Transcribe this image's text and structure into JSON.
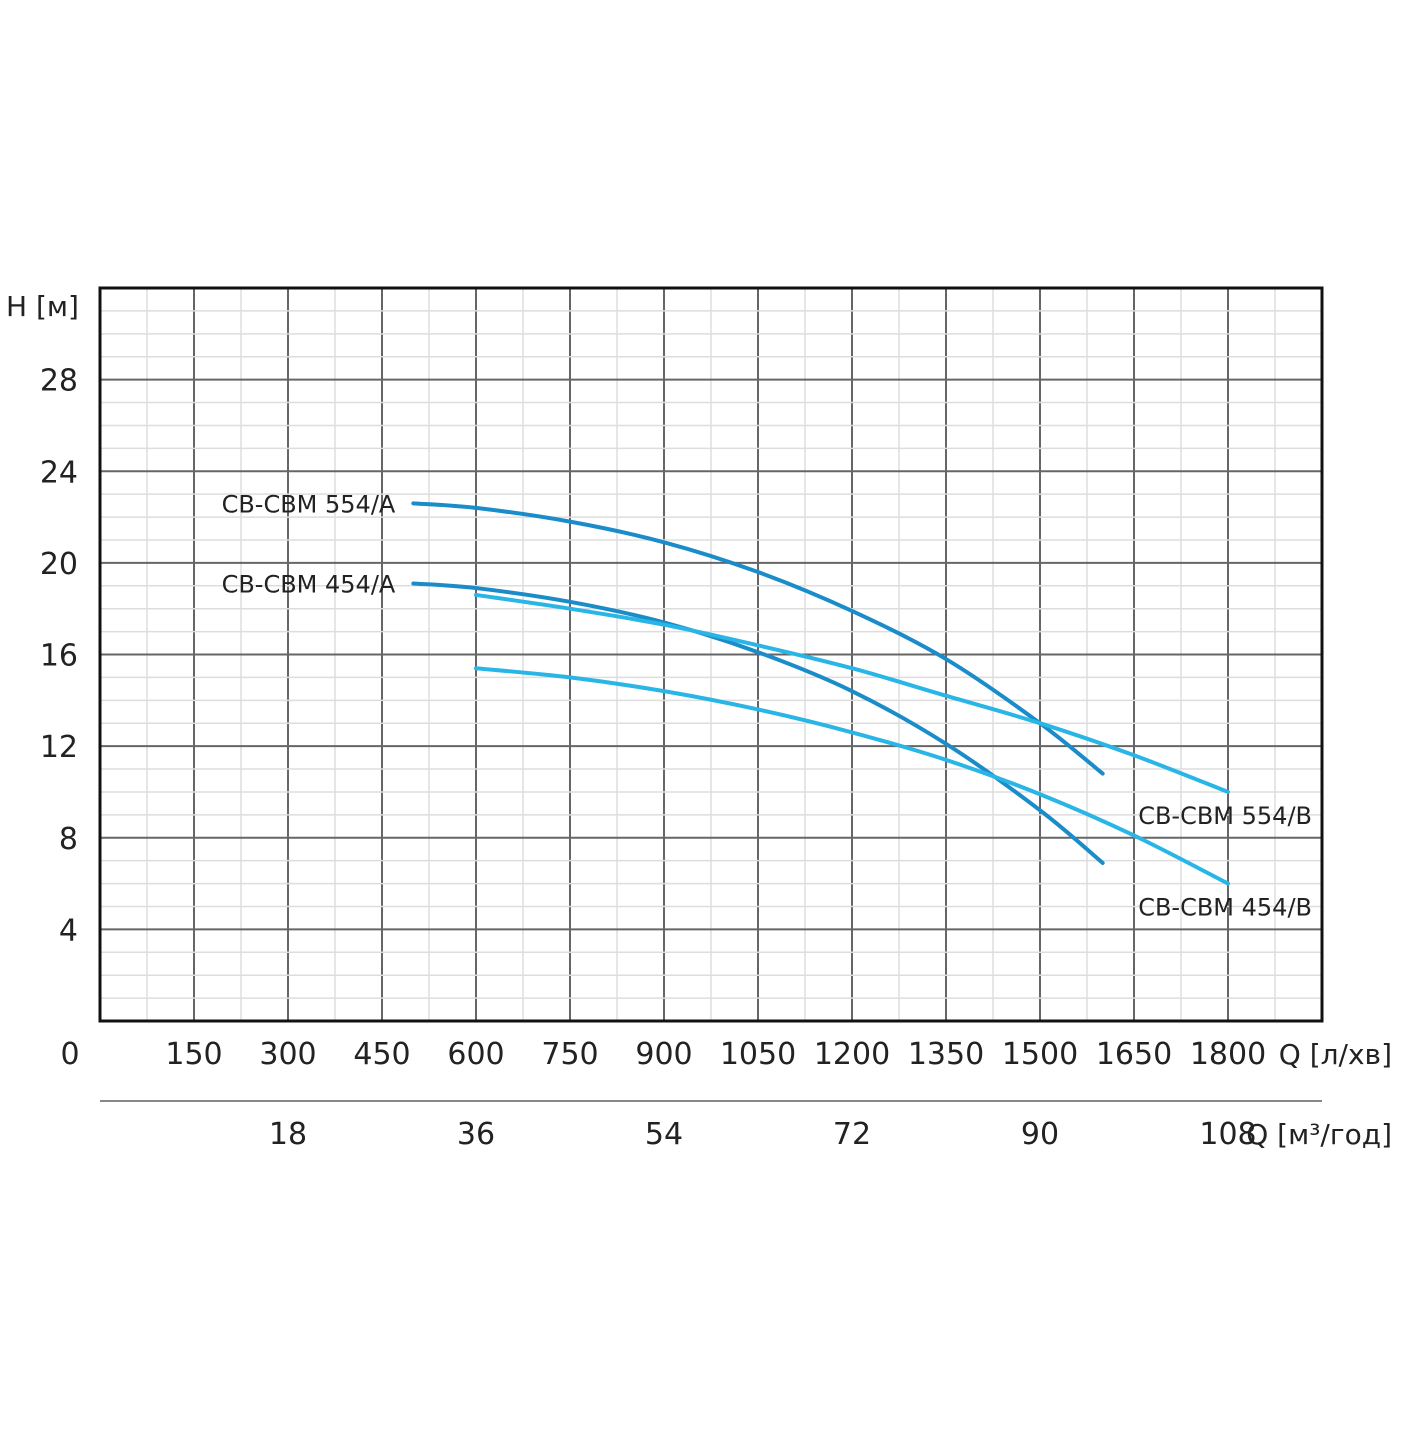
{
  "chart_data": {
    "type": "line",
    "title": "",
    "ylabel": "H [м]",
    "xlabel": "Q [л/хв]",
    "x2label": "Q [м³/год]",
    "ylim": [
      0,
      32
    ],
    "xlim": [
      0,
      1950
    ],
    "x2lim": [
      0,
      117
    ],
    "yticks": [
      "4",
      "8",
      "12",
      "16",
      "20",
      "24",
      "28"
    ],
    "y_zero_label": "0",
    "xticks": [
      "150",
      "300",
      "450",
      "600",
      "750",
      "900",
      "1050",
      "1200",
      "1350",
      "1500",
      "1650",
      "1800"
    ],
    "x2ticks": [
      "18",
      "36",
      "54",
      "72",
      "90",
      "108"
    ],
    "grid": true,
    "series": [
      {
        "name": "CB-CBM 554/A",
        "color": "#1a8cc9",
        "points": [
          [
            500,
            22.6
          ],
          [
            600,
            22.4
          ],
          [
            750,
            21.8
          ],
          [
            900,
            20.9
          ],
          [
            1050,
            19.6
          ],
          [
            1200,
            17.9
          ],
          [
            1350,
            15.8
          ],
          [
            1500,
            13.0
          ],
          [
            1600,
            10.8
          ]
        ]
      },
      {
        "name": "CB-CBM 454/A",
        "color": "#1a8cc9",
        "points": [
          [
            500,
            19.1
          ],
          [
            600,
            18.9
          ],
          [
            750,
            18.3
          ],
          [
            900,
            17.4
          ],
          [
            1050,
            16.1
          ],
          [
            1200,
            14.4
          ],
          [
            1350,
            12.1
          ],
          [
            1500,
            9.2
          ],
          [
            1600,
            6.9
          ]
        ]
      },
      {
        "name": "CB-CBM 554/B",
        "color": "#29b6e6",
        "points": [
          [
            600,
            18.6
          ],
          [
            750,
            18.0
          ],
          [
            900,
            17.3
          ],
          [
            1050,
            16.4
          ],
          [
            1200,
            15.4
          ],
          [
            1350,
            14.2
          ],
          [
            1500,
            13.0
          ],
          [
            1650,
            11.6
          ],
          [
            1800,
            10.0
          ]
        ]
      },
      {
        "name": "CB-CBM 454/B",
        "color": "#29b6e6",
        "points": [
          [
            600,
            15.4
          ],
          [
            750,
            15.0
          ],
          [
            900,
            14.4
          ],
          [
            1050,
            13.6
          ],
          [
            1200,
            12.6
          ],
          [
            1350,
            11.4
          ],
          [
            1500,
            9.9
          ],
          [
            1650,
            8.1
          ],
          [
            1800,
            6.0
          ]
        ]
      }
    ]
  }
}
